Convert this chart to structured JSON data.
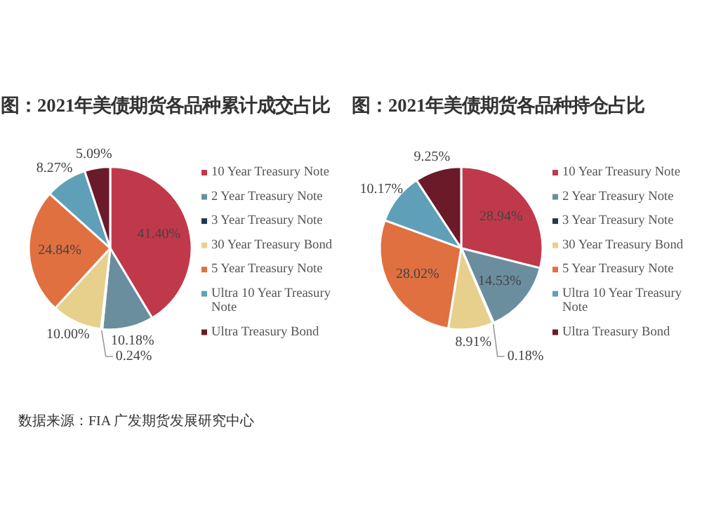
{
  "chart_data": [
    {
      "type": "pie",
      "title": "图：2021年美债期货各品种累计成交占比",
      "categories": [
        "10 Year Treasury Note",
        "2 Year Treasury Note",
        "3 Year Treasury Note",
        "30 Year Treasury Bond",
        "5 Year Treasury Note",
        "Ultra 10 Year Treasury Note",
        "Ultra Treasury Bond"
      ],
      "values": [
        41.4,
        10.18,
        0.24,
        10.0,
        24.84,
        8.27,
        5.09
      ],
      "value_labels": [
        "41.40%",
        "10.18%",
        "0.24%",
        "10.00%",
        "24.84%",
        "8.27%",
        "5.09%"
      ],
      "colors": [
        "#c0394b",
        "#6b8e9e",
        "#1f3a4a",
        "#e6d08c",
        "#e07040",
        "#5fa0b8",
        "#6b1a2a"
      ],
      "legend": "right",
      "annotations": [
        "数据来源：FIA 广发期货发展研究中心"
      ]
    },
    {
      "type": "pie",
      "title": "图：2021年美债期货各品种持仓占比",
      "categories": [
        "10 Year Treasury Note",
        "2 Year Treasury Note",
        "3 Year Treasury Note",
        "30 Year Treasury Bond",
        "5 Year Treasury Note",
        "Ultra 10 Year Treasury Note",
        "Ultra Treasury Bond"
      ],
      "values": [
        28.94,
        14.53,
        0.18,
        8.91,
        28.02,
        10.17,
        9.25
      ],
      "value_labels": [
        "28.94%",
        "14.53%",
        "0.18%",
        "8.91%",
        "28.02%",
        "10.17%",
        "9.25%"
      ],
      "colors": [
        "#c0394b",
        "#6b8e9e",
        "#1f3a4a",
        "#e6d08c",
        "#e07040",
        "#5fa0b8",
        "#6b1a2a"
      ],
      "legend": "right"
    }
  ]
}
